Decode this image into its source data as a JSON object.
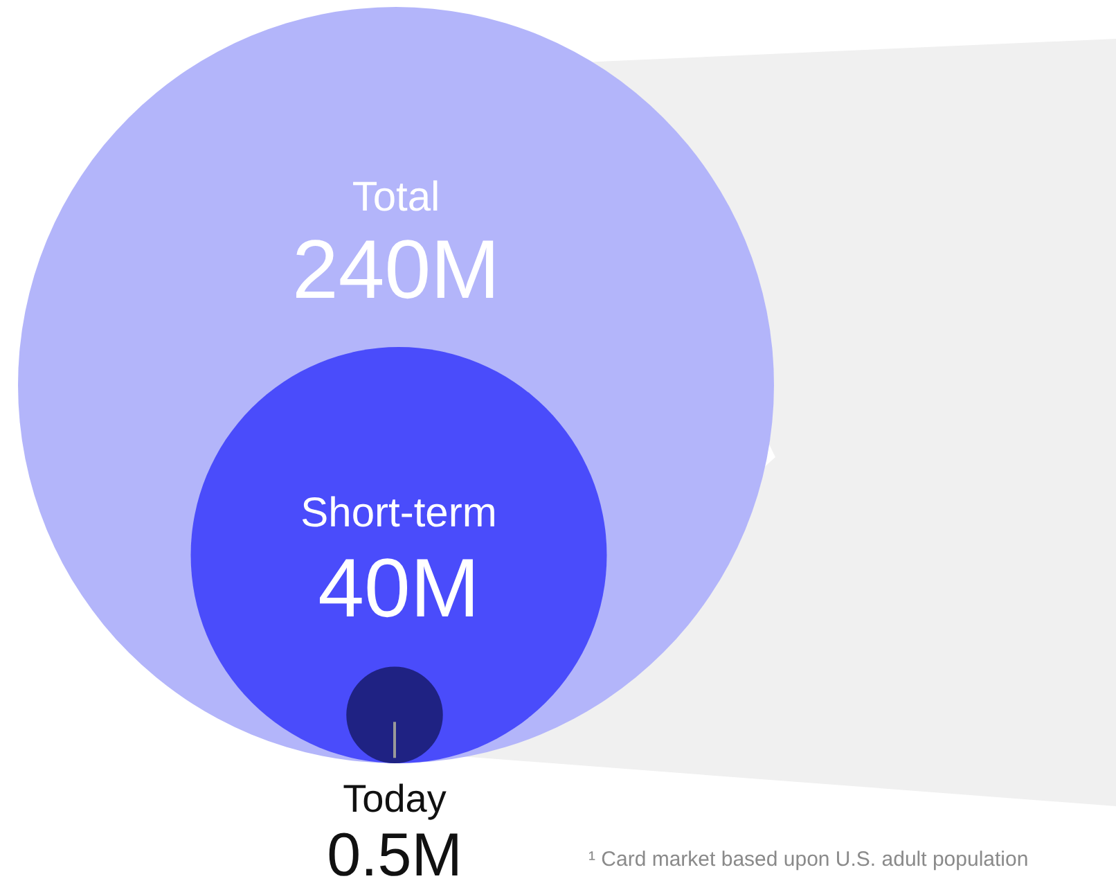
{
  "chart_data": {
    "type": "other",
    "categories": [
      "Total",
      "Short-term",
      "Today"
    ],
    "values": [
      240,
      40,
      0.5
    ],
    "value_labels": [
      "240M",
      "40M",
      "0.5M"
    ],
    "colors": [
      "#b3b5fa",
      "#4a4cfb",
      "#1f2283"
    ],
    "annotations": [
      "¹ Card market based upon U.S. adult population"
    ]
  }
}
